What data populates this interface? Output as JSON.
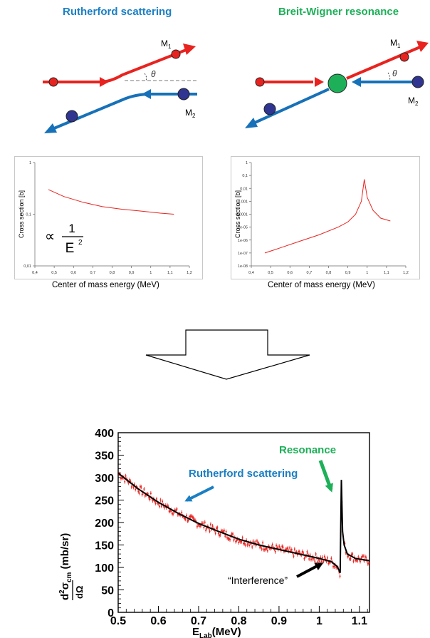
{
  "top": {
    "left_title": "Rutherford scattering",
    "right_title": "Breit-Wigner resonance",
    "m1_label": "M",
    "m1_sub": "1",
    "m2_label": "M",
    "m2_sub": "2",
    "theta": "θ"
  },
  "colors": {
    "beam1": "#e8231f",
    "beam2": "#1771b8",
    "particle1": "#e8231f",
    "particle2": "#2f3591",
    "compound": "#1db058",
    "title_left": "#1a7fc4",
    "title_right": "#1db058",
    "curve": "#e8231f",
    "fit": "#000000"
  },
  "plot_left": {
    "ylabel": "Cross section [b]",
    "xlabel": "Center of mass energy  (MeV)",
    "yticks": [
      "0,01",
      "0,1",
      "1"
    ],
    "xticks": [
      "0,4",
      "0,5",
      "0,6",
      "0,7",
      "0,8",
      "0,9",
      "1",
      "1,1",
      "1,2"
    ],
    "formula_prop": "∝",
    "formula_num": "1",
    "formula_den": "E",
    "formula_exp": "2",
    "chart_data": {
      "type": "line",
      "scale_y": "log",
      "xlim": [
        0.4,
        1.2
      ],
      "ylim": [
        0.01,
        1
      ],
      "x": [
        0.47,
        0.55,
        0.65,
        0.75,
        0.85,
        0.95,
        1.05,
        1.12
      ],
      "y": [
        0.3,
        0.22,
        0.17,
        0.14,
        0.125,
        0.115,
        0.105,
        0.1
      ]
    }
  },
  "plot_right": {
    "ylabel": "Cross section [b]",
    "xlabel": "Center of mass energy  (MeV)",
    "yticks": [
      "1e-08",
      "1e-07",
      "1e-06",
      "1e-05",
      "0,0001",
      "0,001",
      "0,01",
      "0,1",
      "1"
    ],
    "xticks": [
      "0,4",
      "0,5",
      "0,6",
      "0,7",
      "0,8",
      "0,9",
      "1",
      "1,1",
      "1,2"
    ],
    "chart_data": {
      "type": "line",
      "scale_y": "log",
      "xlim": [
        0.4,
        1.2
      ],
      "ylim": [
        1e-08,
        1
      ],
      "x": [
        0.47,
        0.55,
        0.65,
        0.75,
        0.85,
        0.9,
        0.94,
        0.97,
        0.985,
        1.0,
        1.03,
        1.07,
        1.12
      ],
      "y": [
        1e-07,
        2.5e-07,
        8e-07,
        2.5e-06,
        1e-05,
        2.5e-05,
        0.0001,
        0.001,
        0.05,
        0.002,
        0.0002,
        5e-05,
        3e-05
      ]
    }
  },
  "bottom": {
    "ylabel_sub": "cm",
    "ylabel_unit": "(mb/sr)",
    "ylabel_den": "dΩ",
    "xlabel_main": "E",
    "xlabel_sub": "Lab",
    "xlabel_unit": "(MeV)",
    "ann_rutherford": "Rutherford scattering",
    "ann_resonance": "Resonance",
    "ann_interference": "“Interference”",
    "yticks": [
      "0",
      "50",
      "100",
      "150",
      "200",
      "250",
      "300",
      "350",
      "400"
    ],
    "xticks": [
      "0.5",
      "0.6",
      "0.7",
      "0.8",
      "0.9",
      "1",
      "1.1"
    ],
    "chart_data": {
      "type": "scatter",
      "xlim": [
        0.5,
        1.125
      ],
      "ylim": [
        0,
        400
      ],
      "fit_x": [
        0.5,
        0.55,
        0.6,
        0.65,
        0.7,
        0.75,
        0.8,
        0.85,
        0.9,
        0.95,
        1.0,
        1.03,
        1.045,
        1.052,
        1.055,
        1.058,
        1.062,
        1.07,
        1.09,
        1.125
      ],
      "fit_y": [
        310,
        275,
        245,
        220,
        198,
        180,
        163,
        150,
        140,
        130,
        120,
        113,
        102,
        88,
        295,
        180,
        150,
        130,
        120,
        115
      ]
    }
  }
}
